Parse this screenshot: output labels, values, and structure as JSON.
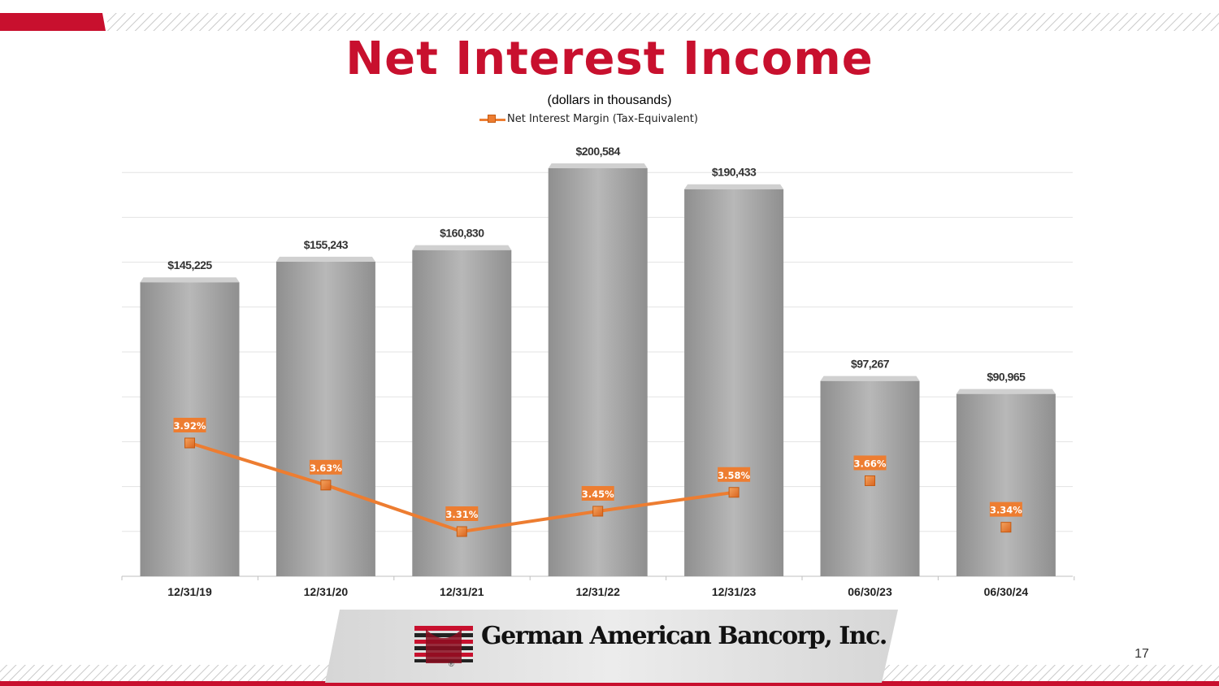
{
  "title": "Net Interest Income",
  "subtitle": "(dollars in thousands)",
  "legend": {
    "series_label": "Net Interest Margin (Tax-Equivalent)"
  },
  "company": {
    "name": "German American Bancorp, Inc.",
    "registered_mark": "®"
  },
  "page_number": "17",
  "colors": {
    "brand_red": "#c8102e",
    "line_orange": "#ed7d31",
    "bar_gray": "#a6a6a6"
  },
  "chart_data": {
    "type": "bar",
    "categories": [
      "12/31/19",
      "12/31/20",
      "12/31/21",
      "12/31/22",
      "12/31/23",
      "06/30/23",
      "06/30/24"
    ],
    "series": [
      {
        "kind": "bar",
        "values": [
          145225,
          155243,
          160830,
          200584,
          190433,
          97267,
          90965
        ],
        "labels": [
          "$145,225",
          "$155,243",
          "$160,830",
          "$200,584",
          "$190,433",
          "$97,267",
          "$90,965"
        ]
      },
      {
        "name": "Net Interest Margin (Tax-Equivalent)",
        "kind": "line",
        "values": [
          3.92,
          3.63,
          3.31,
          3.45,
          3.58,
          3.66,
          3.34
        ],
        "labels": [
          "3.92%",
          "3.63%",
          "3.31%",
          "3.45%",
          "3.58%",
          "3.66%",
          "3.34%"
        ],
        "connected_through_index": 4
      }
    ],
    "bar_axis": {
      "min": 0,
      "max": 225000
    },
    "line_axis": {
      "min": 2.8,
      "max": 5.0
    },
    "grid": true,
    "legend_position": "top"
  }
}
